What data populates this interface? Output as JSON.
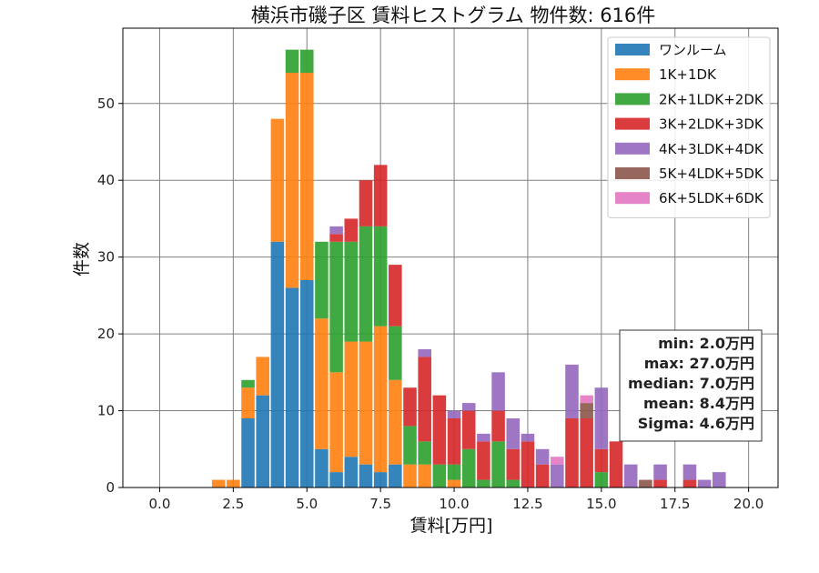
{
  "chart_data": {
    "type": "bar",
    "stacked": true,
    "title": "横浜市磯子区 賃料ヒストグラム  物件数: 616件",
    "xlabel": "賃料[万円]",
    "ylabel": "件数",
    "xlim": [
      -1.25,
      21.0
    ],
    "ylim": [
      0,
      59.8
    ],
    "bin_width": 0.5,
    "bar_fraction": 0.9,
    "x_ticks": [
      0,
      2.5,
      5,
      7.5,
      10,
      12.5,
      15,
      17.5,
      20
    ],
    "x_tick_labels": [
      "0.0",
      "2.5",
      "5.0",
      "7.5",
      "10.0",
      "12.5",
      "15.0",
      "17.5",
      "20.0"
    ],
    "y_ticks": [
      0,
      10,
      20,
      30,
      40,
      50
    ],
    "y_tick_labels": [
      "0",
      "10",
      "20",
      "30",
      "40",
      "50"
    ],
    "grid": true,
    "legend_position": "top-right",
    "x": [
      2.0,
      2.5,
      3.0,
      3.5,
      4.0,
      4.5,
      5.0,
      5.5,
      6.0,
      6.5,
      7.0,
      7.5,
      8.0,
      8.5,
      9.0,
      9.5,
      10.0,
      10.5,
      11.0,
      11.5,
      12.0,
      12.5,
      13.0,
      13.5,
      14.0,
      14.5,
      15.0,
      15.5,
      16.0,
      16.5,
      17.0,
      17.5,
      18.0,
      18.5,
      19.0,
      19.5
    ],
    "series": [
      {
        "name": "ワンルーム",
        "color": "#1f77b4",
        "values": [
          0,
          0,
          9,
          12,
          32,
          26,
          27,
          5,
          2,
          4,
          3,
          2,
          3,
          0,
          0,
          0,
          0,
          0,
          0,
          0,
          0,
          0,
          0,
          0,
          0,
          0,
          0,
          0,
          0,
          0,
          0,
          0,
          0,
          0,
          0,
          0
        ]
      },
      {
        "name": "1K+1DK",
        "color": "#ff7f0e",
        "values": [
          1,
          1,
          4,
          5,
          16,
          28,
          27,
          17,
          13,
          15,
          16,
          19,
          11,
          3,
          3,
          0,
          1,
          0,
          0,
          0,
          0,
          0,
          0,
          0,
          0,
          0,
          0,
          0,
          0,
          0,
          0,
          0,
          0,
          0,
          0,
          0
        ]
      },
      {
        "name": "2K+1LDK+2DK",
        "color": "#2ca02c",
        "values": [
          0,
          0,
          1,
          0,
          0,
          3,
          3,
          10,
          17,
          13,
          15,
          13,
          7,
          5,
          3,
          3,
          2,
          5,
          1,
          6,
          1,
          0,
          0,
          0,
          0,
          0,
          2,
          0,
          0,
          0,
          0,
          0,
          0,
          0,
          0,
          0
        ]
      },
      {
        "name": "3K+2LDK+3DK",
        "color": "#d62728",
        "values": [
          0,
          0,
          0,
          0,
          0,
          0,
          0,
          0,
          1,
          3,
          6,
          8,
          8,
          5,
          11,
          9,
          6,
          5,
          5,
          4,
          4,
          6,
          3,
          0,
          9,
          9,
          3,
          6,
          0,
          0,
          1,
          0,
          1,
          0,
          0,
          0
        ]
      },
      {
        "name": "4K+3LDK+4DK",
        "color": "#9467bd",
        "values": [
          0,
          0,
          0,
          0,
          0,
          0,
          0,
          0,
          1,
          0,
          0,
          0,
          0,
          0,
          1,
          0,
          1,
          1,
          1,
          5,
          4,
          1,
          2,
          3,
          7,
          0,
          8,
          0,
          3,
          0,
          2,
          0,
          2,
          1,
          2,
          0
        ]
      },
      {
        "name": "5K+4LDK+5DK",
        "color": "#8c564b",
        "values": [
          0,
          0,
          0,
          0,
          0,
          0,
          0,
          0,
          0,
          0,
          0,
          0,
          0,
          0,
          0,
          0,
          0,
          0,
          0,
          0,
          0,
          0,
          0,
          0,
          0,
          2,
          0,
          0,
          0,
          1,
          0,
          0,
          0,
          0,
          0,
          0
        ]
      },
      {
        "name": "6K+5LDK+6DK",
        "color": "#e377c2",
        "values": [
          0,
          0,
          0,
          0,
          0,
          0,
          0,
          0,
          0,
          0,
          0,
          0,
          0,
          0,
          0,
          0,
          0,
          0,
          0,
          0,
          0,
          0,
          0,
          1,
          0,
          1,
          0,
          0,
          0,
          0,
          0,
          0,
          0,
          0,
          0,
          0
        ]
      }
    ],
    "stats_box": {
      "lines": [
        "min: 2.0万円",
        "max: 27.0万円",
        "median: 7.0万円",
        "mean: 8.4万円",
        "Sigma: 4.6万円"
      ]
    }
  }
}
